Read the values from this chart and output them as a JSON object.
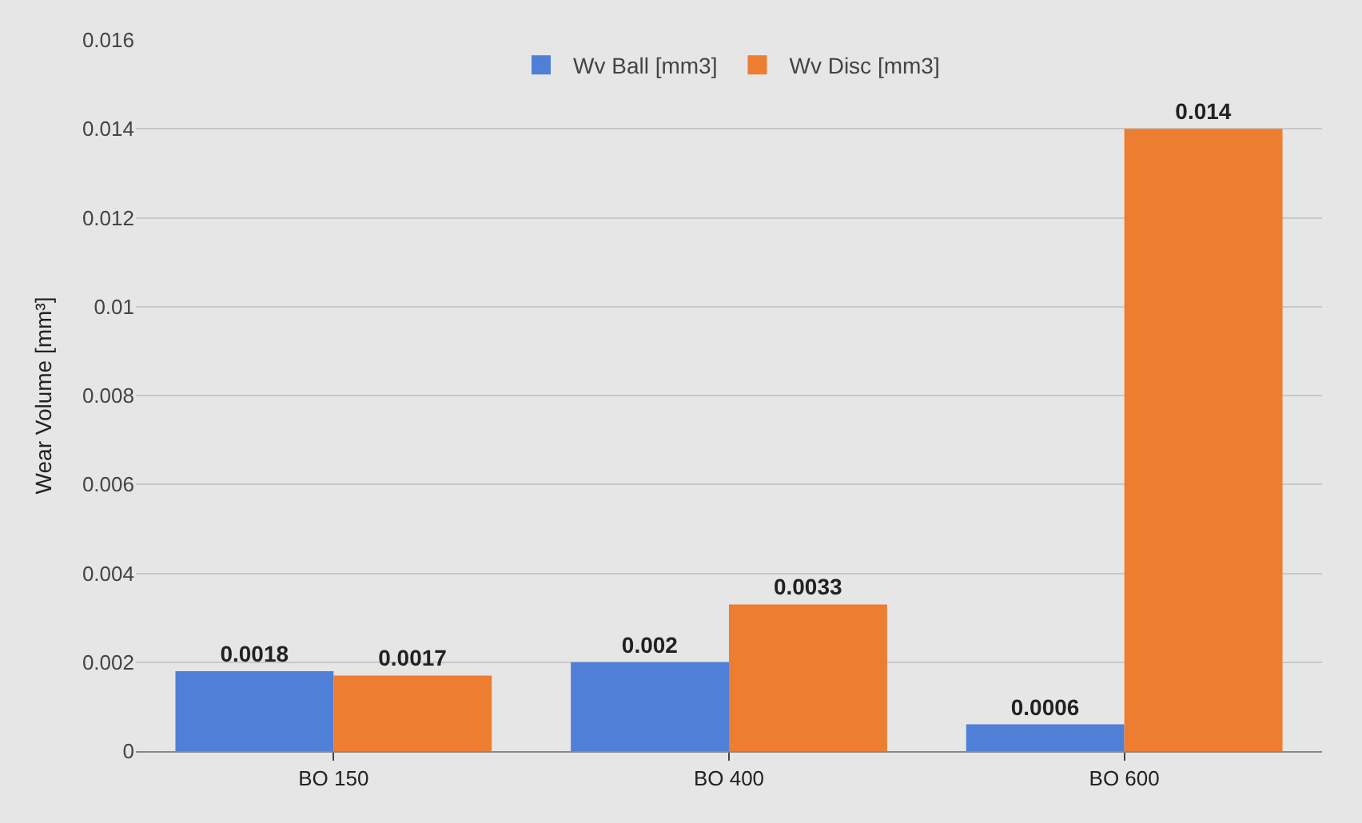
{
  "chart_data": {
    "type": "bar",
    "ylabel": "Wear Volume [mm³]",
    "categories": [
      "BO 150",
      "BO 400",
      "BO 600"
    ],
    "series": [
      {
        "name": "Wv Ball [mm3]",
        "color": "#4f7fd6",
        "values": [
          0.0018,
          0.002,
          0.0006
        ]
      },
      {
        "name": "Wv Disc [mm3]",
        "color": "#ed7d31",
        "values": [
          0.0017,
          0.0033,
          0.014
        ]
      }
    ],
    "ylim": [
      0,
      0.016
    ],
    "yticks": [
      0,
      0.002,
      0.004,
      0.006,
      0.008,
      0.01,
      0.012,
      0.014,
      0.016
    ],
    "grid": "y",
    "legend": "top",
    "data_labels": true
  }
}
